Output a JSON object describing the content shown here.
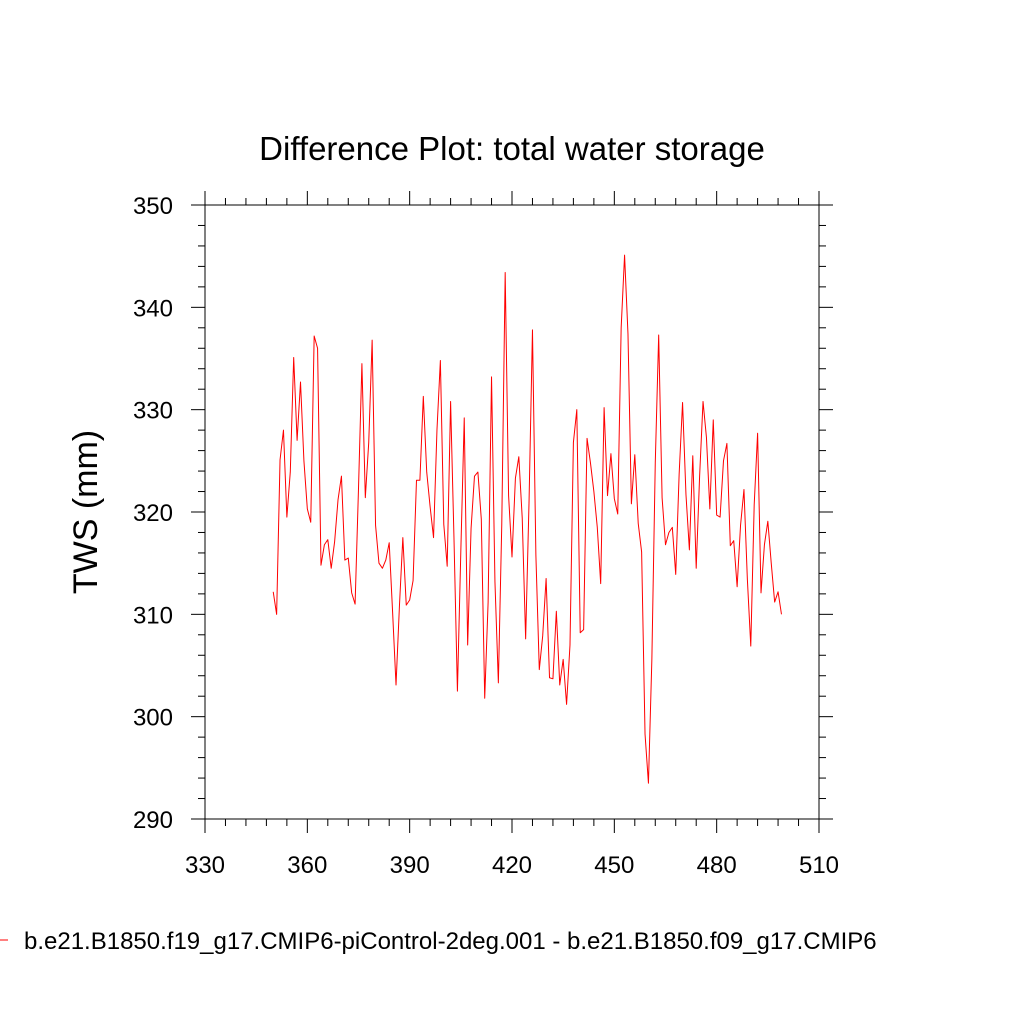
{
  "chart_data": {
    "type": "line",
    "title": "Difference Plot: total water storage",
    "xlabel": "",
    "ylabel": "TWS  (mm)",
    "xlim": [
      330,
      510
    ],
    "ylim": [
      290,
      350
    ],
    "xticks": [
      330,
      360,
      390,
      420,
      450,
      480,
      510
    ],
    "yticks": [
      290,
      300,
      310,
      320,
      330,
      340,
      350
    ],
    "grid": false,
    "legend_position": "bottom",
    "series": [
      {
        "name": "b.e21.B1850.f19_g17.CMIP6-piControl-2deg.001 - b.e21.B1850.f09_g17.CMIP6",
        "color": "#ff0000",
        "x": [
          350,
          351,
          352,
          353,
          354,
          355,
          356,
          357,
          358,
          359,
          360,
          361,
          362,
          363,
          364,
          365,
          366,
          367,
          368,
          369,
          370,
          371,
          372,
          373,
          374,
          375,
          376,
          377,
          378,
          379,
          380,
          381,
          382,
          383,
          384,
          385,
          386,
          387,
          388,
          389,
          390,
          391,
          392,
          393,
          394,
          395,
          396,
          397,
          398,
          399,
          400,
          401,
          402,
          403,
          404,
          405,
          406,
          407,
          408,
          409,
          410,
          411,
          412,
          413,
          414,
          415,
          416,
          417,
          418,
          419,
          420,
          421,
          422,
          423,
          424,
          425,
          426,
          427,
          428,
          429,
          430,
          431,
          432,
          433,
          434,
          435,
          436,
          437,
          438,
          439,
          440,
          441,
          442,
          443,
          444,
          445,
          446,
          447,
          448,
          449,
          450,
          451,
          452,
          453,
          454,
          455,
          456,
          457,
          458,
          459,
          460,
          461,
          462,
          463,
          464,
          465,
          466,
          467,
          468,
          469,
          470,
          471,
          472,
          473,
          474,
          475,
          476,
          477,
          478,
          479,
          480,
          481,
          482,
          483,
          484,
          485,
          486,
          487,
          488,
          489,
          490,
          491,
          492,
          493,
          494,
          495,
          496,
          497,
          498,
          499
        ],
        "values": [
          312.2,
          310.0,
          325.1,
          328.0,
          319.5,
          323.9,
          335.1,
          327.0,
          332.7,
          325.0,
          320.3,
          319.0,
          337.2,
          336.0,
          314.8,
          316.8,
          317.3,
          314.5,
          317.1,
          321.2,
          323.5,
          315.3,
          315.5,
          312.1,
          311.0,
          322.3,
          334.5,
          321.4,
          326.8,
          336.8,
          318.7,
          315.0,
          314.5,
          315.3,
          317.0,
          310.2,
          303.1,
          310.8,
          317.5,
          310.9,
          311.4,
          313.3,
          323.1,
          323.1,
          331.3,
          323.9,
          320.5,
          317.5,
          328.0,
          334.8,
          318.8,
          314.7,
          330.8,
          317.3,
          302.5,
          316.2,
          329.2,
          307.0,
          318.4,
          323.5,
          323.9,
          319.3,
          301.8,
          311.2,
          333.2,
          313.2,
          303.3,
          318.8,
          343.4,
          321.6,
          315.6,
          323.3,
          325.4,
          319.4,
          307.6,
          321.1,
          337.8,
          315.8,
          304.6,
          307.9,
          313.5,
          303.8,
          303.7,
          310.3,
          303.1,
          305.6,
          301.2,
          307.0,
          326.8,
          330.0,
          308.2,
          308.5,
          327.2,
          324.8,
          322.0,
          318.5,
          313.0,
          330.2,
          321.6,
          325.7,
          321.3,
          319.8,
          338.0,
          345.1,
          337.4,
          320.8,
          325.6,
          318.9,
          316.1,
          298.3,
          293.5,
          305.6,
          324.8,
          337.3,
          321.4,
          316.8,
          318.0,
          318.5,
          313.9,
          323.7,
          330.7,
          321.7,
          316.3,
          325.5,
          314.5,
          323.5,
          330.8,
          327.3,
          320.3,
          329.0,
          319.7,
          319.5,
          325.0,
          326.7,
          316.7,
          317.2,
          312.7,
          318.7,
          322.2,
          313.4,
          306.9,
          320.7,
          327.7,
          312.1,
          316.8,
          319.1,
          315.0,
          311.2,
          312.2,
          310.0
        ]
      }
    ]
  }
}
